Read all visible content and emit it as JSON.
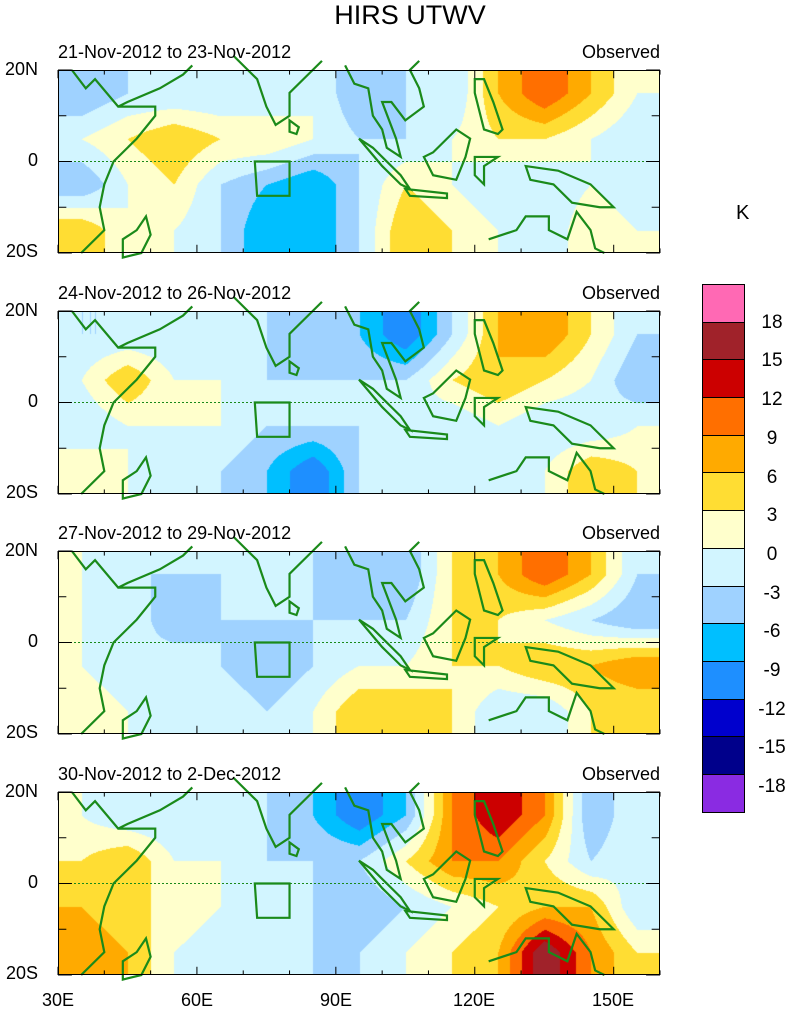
{
  "title": "HIRS UTWV",
  "unit": "K",
  "colorbar": {
    "levels": [
      18,
      15,
      12,
      9,
      6,
      3,
      0,
      -3,
      -6,
      -9,
      -12,
      -15,
      -18
    ],
    "colors": [
      "#ff69b4",
      "#a0222a",
      "#cc0000",
      "#ff6f00",
      "#ffaa00",
      "#ffdd33",
      "#ffffcc",
      "#d2f5ff",
      "#9fd2ff",
      "#00bfff",
      "#1e8fff",
      "#0000cd",
      "#00008b",
      "#8a2be2"
    ],
    "labels": [
      "18",
      "15",
      "12",
      "9",
      "6",
      "3",
      "0",
      "-3",
      "-6",
      "-9",
      "-12",
      "-15",
      "-18"
    ]
  },
  "axes": {
    "y_labels": [
      "20N",
      "0",
      "20S"
    ],
    "x_labels": [
      "30E",
      "60E",
      "90E",
      "120E",
      "150E"
    ]
  },
  "chart_data": {
    "type": "heatmap",
    "variable": "HIRS UTWV anomaly (K)",
    "lon_centers": [
      35,
      45,
      55,
      65,
      75,
      85,
      95,
      105,
      115,
      125,
      135,
      145,
      155
    ],
    "lat_centers": [
      15,
      5,
      -5,
      -15
    ],
    "lon_range": [
      30,
      160
    ],
    "lat_range": [
      -20,
      20
    ],
    "panels": [
      {
        "title": "21-Nov-2012 to 23-Nov-2012",
        "label": "Observed",
        "values": [
          [
            -6,
            -3,
            -3,
            -3,
            -3,
            0,
            -6,
            -3,
            -3,
            6,
            12,
            6,
            0
          ],
          [
            0,
            3,
            6,
            3,
            3,
            0,
            -3,
            -3,
            0,
            3,
            3,
            0,
            -3
          ],
          [
            -6,
            0,
            3,
            -3,
            -6,
            -9,
            -3,
            3,
            0,
            -3,
            -3,
            0,
            -3
          ],
          [
            6,
            0,
            0,
            -3,
            -9,
            -9,
            -3,
            6,
            3,
            0,
            -3,
            3,
            0
          ]
        ]
      },
      {
        "title": "24-Nov-2012 to 26-Nov-2012",
        "label": "Observed",
        "values": [
          [
            -3,
            -3,
            -3,
            0,
            -3,
            -6,
            -6,
            -12,
            -3,
            6,
            9,
            3,
            -3
          ],
          [
            0,
            6,
            0,
            0,
            -3,
            -3,
            -3,
            -3,
            3,
            6,
            3,
            0,
            -6
          ],
          [
            -3,
            0,
            0,
            0,
            -3,
            -3,
            -3,
            0,
            -3,
            0,
            -3,
            -3,
            0
          ],
          [
            3,
            0,
            -3,
            -3,
            -6,
            -12,
            -3,
            -3,
            -3,
            0,
            0,
            6,
            3
          ]
        ]
      },
      {
        "title": "27-Nov-2012 to 29-Nov-2012",
        "label": "Observed",
        "values": [
          [
            0,
            -3,
            -3,
            -3,
            -3,
            -3,
            -6,
            -6,
            3,
            6,
            12,
            6,
            -3
          ],
          [
            0,
            0,
            -6,
            -3,
            -3,
            -3,
            -3,
            -3,
            3,
            3,
            0,
            -3,
            -6
          ],
          [
            0,
            -3,
            0,
            -3,
            -6,
            -3,
            0,
            0,
            3,
            3,
            6,
            6,
            9
          ],
          [
            3,
            0,
            0,
            0,
            -3,
            0,
            6,
            6,
            3,
            -3,
            -3,
            3,
            3
          ]
        ]
      },
      {
        "title": "30-Nov-2012 to 2-Dec-2012",
        "label": "Observed",
        "values": [
          [
            0,
            -3,
            -3,
            0,
            -3,
            -6,
            -12,
            -6,
            9,
            15,
            9,
            -6,
            0
          ],
          [
            3,
            6,
            0,
            0,
            -3,
            -3,
            -3,
            3,
            9,
            9,
            3,
            -3,
            0
          ],
          [
            6,
            3,
            3,
            0,
            -3,
            -3,
            -6,
            -3,
            0,
            3,
            6,
            6,
            -3
          ],
          [
            9,
            6,
            0,
            -3,
            -3,
            -3,
            -3,
            0,
            3,
            6,
            18,
            9,
            3
          ]
        ]
      }
    ]
  }
}
